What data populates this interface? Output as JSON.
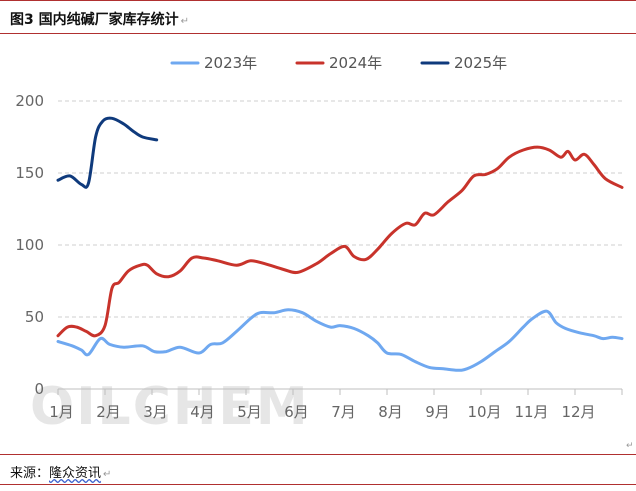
{
  "header": {
    "title": "图3 国内纯碱厂家库存统计"
  },
  "footer": {
    "source_label": "来源：",
    "source_name": "隆众资讯"
  },
  "watermark": "OILCHEM",
  "chart_data": {
    "type": "line",
    "title": "图3 国内纯碱厂家库存统计",
    "xlabel": "",
    "ylabel": "",
    "ylim": [
      0,
      200
    ],
    "yticks": [
      0,
      50,
      100,
      150,
      200
    ],
    "grid": true,
    "legend_position": "top",
    "x_unit": "month",
    "x_range": [
      1,
      13
    ],
    "categories": [
      "1月",
      "2月",
      "3月",
      "4月",
      "5月",
      "6月",
      "7月",
      "8月",
      "9月",
      "10月",
      "11月",
      "12月"
    ],
    "series": [
      {
        "name": "2023年",
        "color": "#6fa8f0",
        "points": [
          [
            1.0,
            33
          ],
          [
            1.3,
            30
          ],
          [
            1.5,
            27
          ],
          [
            1.65,
            24
          ],
          [
            1.9,
            35
          ],
          [
            2.1,
            31
          ],
          [
            2.4,
            29
          ],
          [
            2.8,
            30
          ],
          [
            3.05,
            26
          ],
          [
            3.3,
            26
          ],
          [
            3.6,
            29
          ],
          [
            4.0,
            25
          ],
          [
            4.25,
            31
          ],
          [
            4.5,
            32
          ],
          [
            4.8,
            40
          ],
          [
            5.1,
            49
          ],
          [
            5.3,
            53
          ],
          [
            5.6,
            53
          ],
          [
            5.9,
            55
          ],
          [
            6.2,
            53
          ],
          [
            6.5,
            47
          ],
          [
            6.8,
            43
          ],
          [
            7.0,
            44
          ],
          [
            7.3,
            42
          ],
          [
            7.6,
            37
          ],
          [
            7.8,
            32
          ],
          [
            8.0,
            25
          ],
          [
            8.3,
            24
          ],
          [
            8.6,
            19
          ],
          [
            8.9,
            15
          ],
          [
            9.2,
            14
          ],
          [
            9.5,
            13
          ],
          [
            9.7,
            14
          ],
          [
            10.0,
            19
          ],
          [
            10.3,
            26
          ],
          [
            10.6,
            33
          ],
          [
            10.9,
            43
          ],
          [
            11.1,
            49
          ],
          [
            11.4,
            54
          ],
          [
            11.6,
            46
          ],
          [
            11.8,
            42
          ],
          [
            12.1,
            39
          ],
          [
            12.4,
            37
          ],
          [
            12.6,
            35
          ],
          [
            12.8,
            36
          ],
          [
            13.0,
            35
          ]
        ]
      },
      {
        "name": "2024年",
        "color": "#c8332b",
        "points": [
          [
            1.0,
            37
          ],
          [
            1.2,
            43
          ],
          [
            1.4,
            43
          ],
          [
            1.6,
            40
          ],
          [
            1.8,
            37
          ],
          [
            2.0,
            44
          ],
          [
            2.15,
            70
          ],
          [
            2.3,
            74
          ],
          [
            2.5,
            82
          ],
          [
            2.75,
            86
          ],
          [
            2.9,
            86
          ],
          [
            3.1,
            80
          ],
          [
            3.35,
            78
          ],
          [
            3.6,
            82
          ],
          [
            3.85,
            91
          ],
          [
            4.1,
            91
          ],
          [
            4.4,
            89
          ],
          [
            4.8,
            86
          ],
          [
            5.1,
            89
          ],
          [
            5.4,
            87
          ],
          [
            5.8,
            83
          ],
          [
            6.1,
            81
          ],
          [
            6.5,
            87
          ],
          [
            6.8,
            94
          ],
          [
            7.1,
            99
          ],
          [
            7.3,
            92
          ],
          [
            7.55,
            90
          ],
          [
            7.8,
            97
          ],
          [
            8.1,
            108
          ],
          [
            8.4,
            115
          ],
          [
            8.6,
            114
          ],
          [
            8.8,
            122
          ],
          [
            9.0,
            121
          ],
          [
            9.3,
            130
          ],
          [
            9.6,
            138
          ],
          [
            9.85,
            148
          ],
          [
            10.1,
            149
          ],
          [
            10.35,
            153
          ],
          [
            10.6,
            161
          ],
          [
            10.9,
            166
          ],
          [
            11.2,
            168
          ],
          [
            11.45,
            166
          ],
          [
            11.7,
            161
          ],
          [
            11.85,
            165
          ],
          [
            12.0,
            159
          ],
          [
            12.2,
            163
          ],
          [
            12.4,
            156
          ],
          [
            12.65,
            146
          ],
          [
            13.0,
            140
          ]
        ]
      },
      {
        "name": "2025年",
        "color": "#0f3a7c",
        "points": [
          [
            1.0,
            145
          ],
          [
            1.25,
            148
          ],
          [
            1.5,
            142
          ],
          [
            1.65,
            143
          ],
          [
            1.8,
            175
          ],
          [
            1.95,
            186
          ],
          [
            2.15,
            188
          ],
          [
            2.4,
            184
          ],
          [
            2.6,
            179
          ],
          [
            2.8,
            175
          ],
          [
            3.1,
            173
          ]
        ]
      }
    ]
  }
}
